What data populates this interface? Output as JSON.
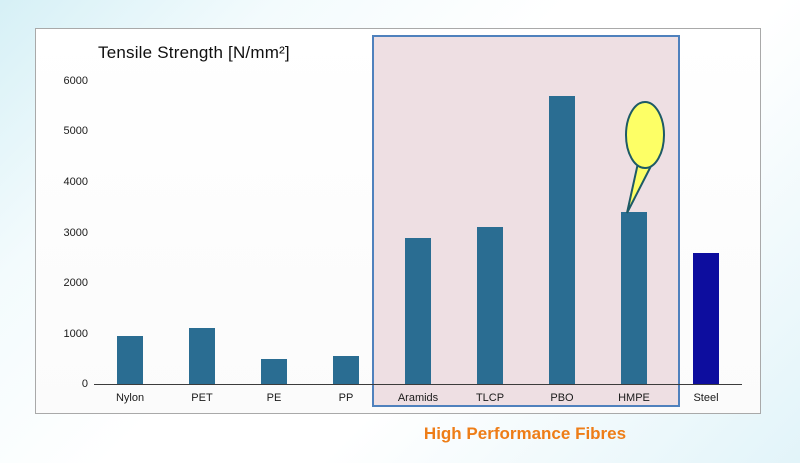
{
  "slide": {
    "title": "Tensile Strength [N/mm²]",
    "highlight_label": "High Performance Fibres",
    "highlight_label_color": "#ee7d17"
  },
  "chart_data": {
    "type": "bar",
    "title": "Tensile Strength [N/mm²]",
    "categories": [
      "Nylon",
      "PET",
      "PE",
      "PP",
      "Aramids",
      "TLCP",
      "PBO",
      "HMPE",
      "Steel"
    ],
    "values": [
      950,
      1100,
      500,
      550,
      2900,
      3100,
      5700,
      3400,
      2600
    ],
    "bar_colors": [
      "#2a6d92",
      "#2a6d92",
      "#2a6d92",
      "#2a6d92",
      "#2a6d92",
      "#2a6d92",
      "#2a6d92",
      "#2a6d92",
      "#0d0d9e"
    ],
    "xlabel": "",
    "ylabel": "Tensile Strength [N/mm²]",
    "ylim": [
      0,
      6000
    ],
    "ytick_step": 1000,
    "grid": false,
    "legend": "none",
    "highlight": {
      "label": "High Performance Fibres",
      "start_index": 4,
      "end_index": 7,
      "fill": "#eedfe3",
      "border": "#4f81bd"
    },
    "annotation": {
      "type": "balloon-callout",
      "target": "HMPE",
      "fill": "#fdff66",
      "stroke": "#1d5a66"
    }
  }
}
